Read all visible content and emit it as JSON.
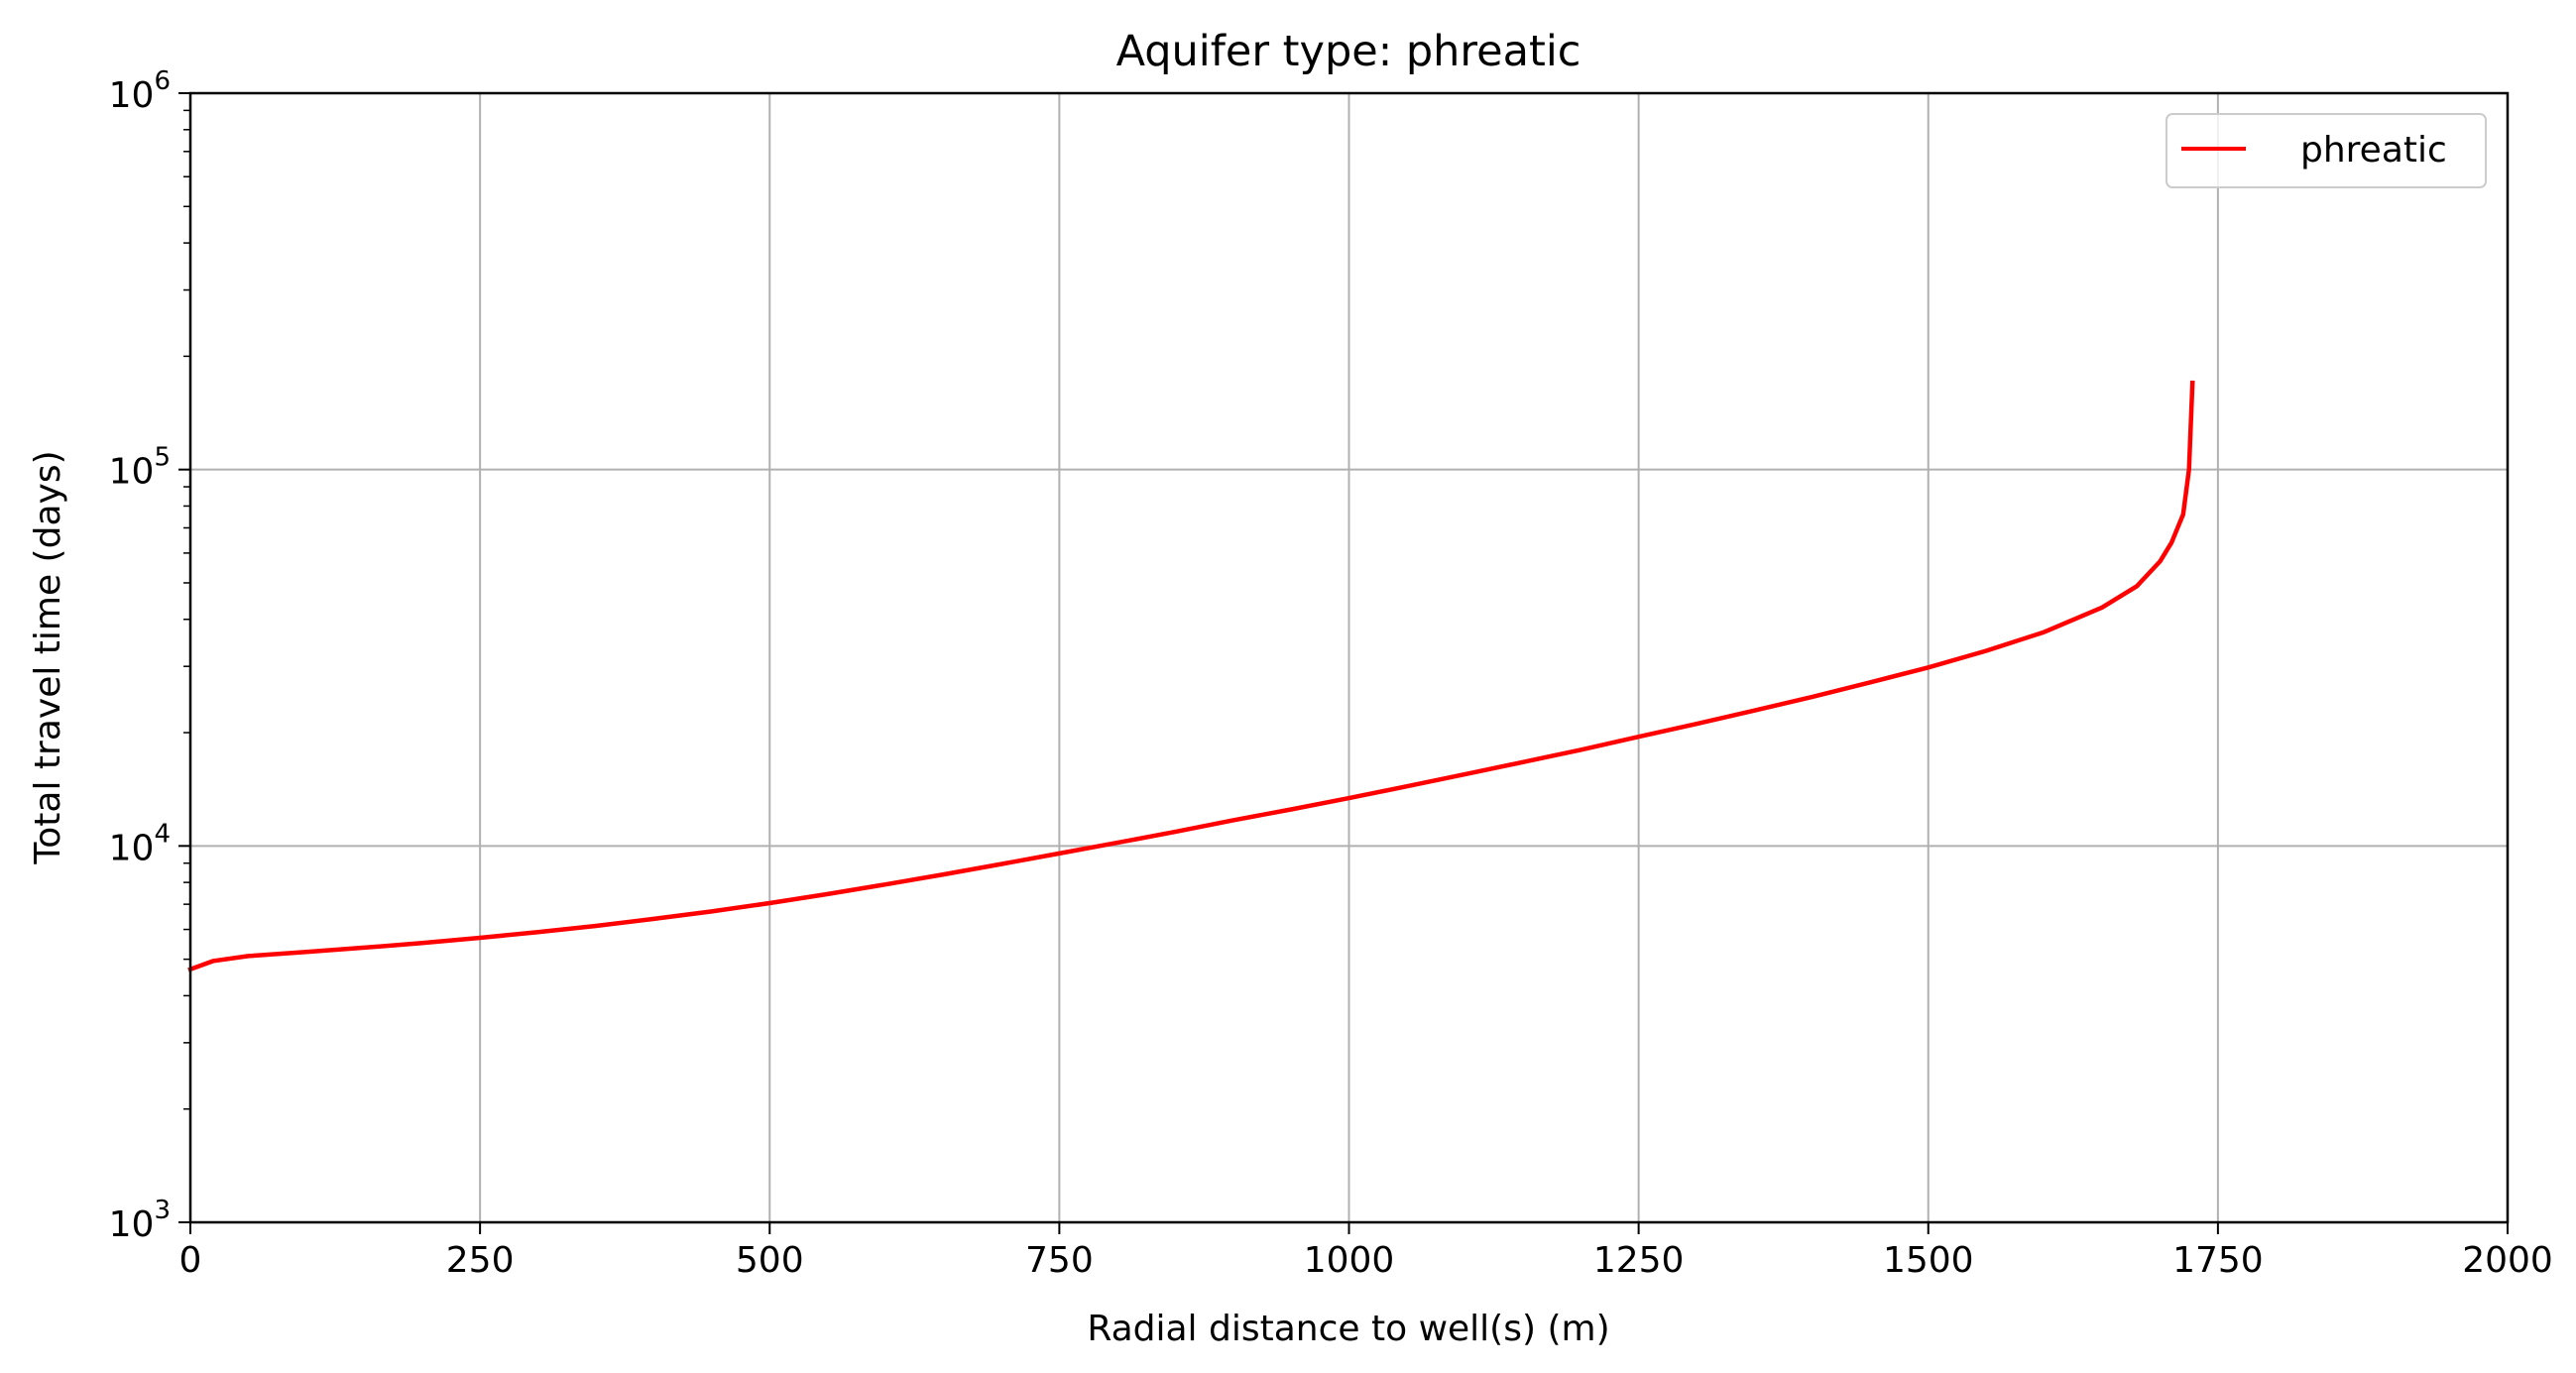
{
  "chart_data": {
    "type": "line",
    "title": "Aquifer type: phreatic",
    "xlabel": "Radial distance to well(s) (m)",
    "ylabel": "Total travel time (days)",
    "xlim": [
      0,
      2000
    ],
    "ylim": [
      1000,
      1000000
    ],
    "yscale": "log",
    "grid": true,
    "legend_position": "top-right",
    "x_ticks": [
      "0",
      "250",
      "500",
      "750",
      "1000",
      "1250",
      "1500",
      "1750",
      "2000"
    ],
    "y_ticks": [
      {
        "base": "10",
        "exp": "3",
        "value": 1000
      },
      {
        "base": "10",
        "exp": "4",
        "value": 10000
      },
      {
        "base": "10",
        "exp": "5",
        "value": 100000
      },
      {
        "base": "10",
        "exp": "6",
        "value": 1000000
      }
    ],
    "series": [
      {
        "name": "phreatic",
        "color": "#ff0000",
        "x": [
          0,
          20,
          50,
          100,
          150,
          200,
          250,
          300,
          350,
          400,
          450,
          500,
          550,
          600,
          650,
          700,
          750,
          800,
          850,
          900,
          950,
          1000,
          1050,
          1100,
          1150,
          1200,
          1250,
          1300,
          1350,
          1400,
          1450,
          1500,
          1550,
          1600,
          1650,
          1680,
          1700,
          1710,
          1720,
          1725,
          1728
        ],
        "y": [
          4700,
          4950,
          5100,
          5230,
          5370,
          5520,
          5700,
          5900,
          6130,
          6400,
          6700,
          7050,
          7450,
          7900,
          8400,
          8950,
          9550,
          10200,
          10900,
          11700,
          12500,
          13400,
          14400,
          15500,
          16700,
          18000,
          19500,
          21100,
          22900,
          24900,
          27200,
          29800,
          33000,
          37000,
          43000,
          49000,
          57000,
          64000,
          76000,
          100000,
          170000
        ]
      }
    ]
  }
}
